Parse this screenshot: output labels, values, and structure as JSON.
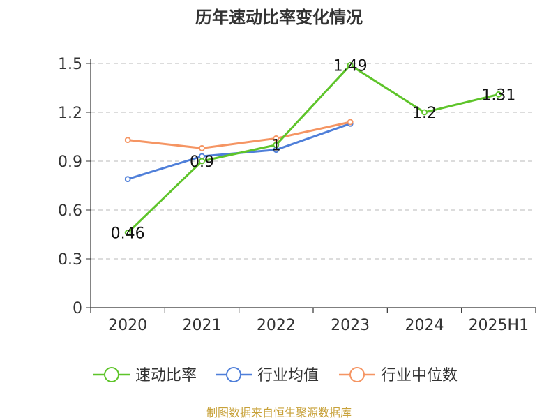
{
  "chart_data": {
    "type": "line",
    "title": "历年速动比率变化情况",
    "categories": [
      "2020",
      "2021",
      "2022",
      "2023",
      "2024",
      "2025H1"
    ],
    "y_ticks": [
      "0",
      "0.3",
      "0.6",
      "0.9",
      "1.2",
      "1.5"
    ],
    "ylim": [
      0,
      1.5
    ],
    "grid": true,
    "legend_position": "bottom",
    "series": [
      {
        "name": "速动比率",
        "color": "#5ec42a",
        "values": [
          0.46,
          0.9,
          1.0,
          1.49,
          1.2,
          1.31
        ],
        "labels": [
          "0.46",
          "0.9",
          "1",
          "1.49",
          "1.2",
          "1.31"
        ]
      },
      {
        "name": "行业均值",
        "color": "#4f7fd9",
        "values": [
          0.79,
          0.93,
          0.97,
          1.13,
          null,
          null
        ]
      },
      {
        "name": "行业中位数",
        "color": "#f59563",
        "values": [
          1.03,
          0.98,
          1.04,
          1.14,
          null,
          null
        ]
      }
    ]
  },
  "source_text": "制图数据来自恒生聚源数据库"
}
